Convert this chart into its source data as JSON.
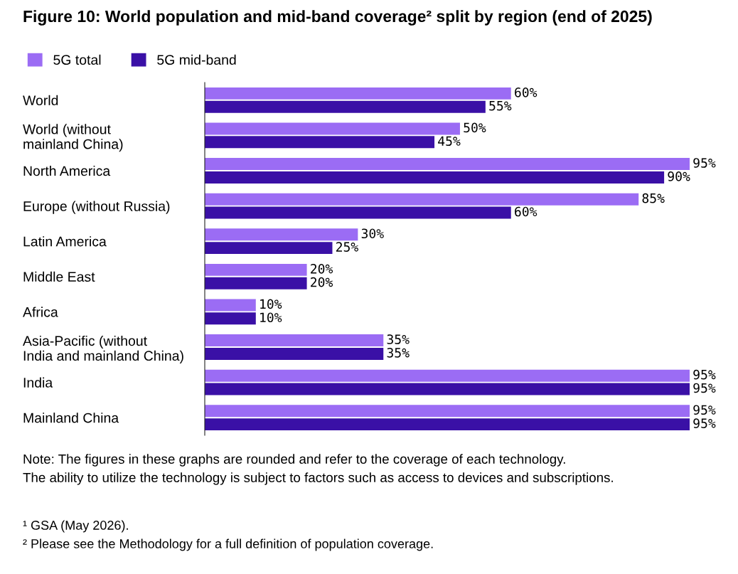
{
  "chart_data": {
    "type": "bar",
    "orientation": "horizontal",
    "title": "Figure 10: World population and mid-band coverage² split by region (end of 2025)",
    "categories": [
      "World",
      "World (without\nmainland China)",
      "North America",
      "Europe (without Russia)",
      "Latin America",
      "Middle East",
      "Africa",
      "Asia-Pacific (without\nIndia and mainland China)",
      "India",
      "Mainland China"
    ],
    "series": [
      {
        "name": "5G total",
        "color": "#9b6cf4",
        "values": [
          60,
          50,
          95,
          85,
          30,
          20,
          10,
          35,
          95,
          95
        ],
        "value_labels": [
          "60%",
          "50%",
          "95%",
          "85%",
          "30%",
          "20%",
          "10%",
          "35%",
          "95%",
          "95%"
        ]
      },
      {
        "name": "5G mid-band",
        "color": "#3a10a6",
        "values": [
          55,
          45,
          90,
          60,
          25,
          20,
          10,
          35,
          95,
          95
        ],
        "value_labels": [
          "55%",
          "45%",
          "90%",
          "60%",
          "25%",
          "20%",
          "10%",
          "35%",
          "95%",
          "95%"
        ]
      }
    ],
    "legend": "top left",
    "grid": false,
    "annotations": [
      "Note: The figures in these graphs are rounded and refer to the coverage of each technology.",
      "The ability to utilize the technology is subject to factors such as access to devices and subscriptions.",
      "¹ GSA (May 2026).",
      "² Please see the Methodology for a full definition of population coverage."
    ]
  }
}
